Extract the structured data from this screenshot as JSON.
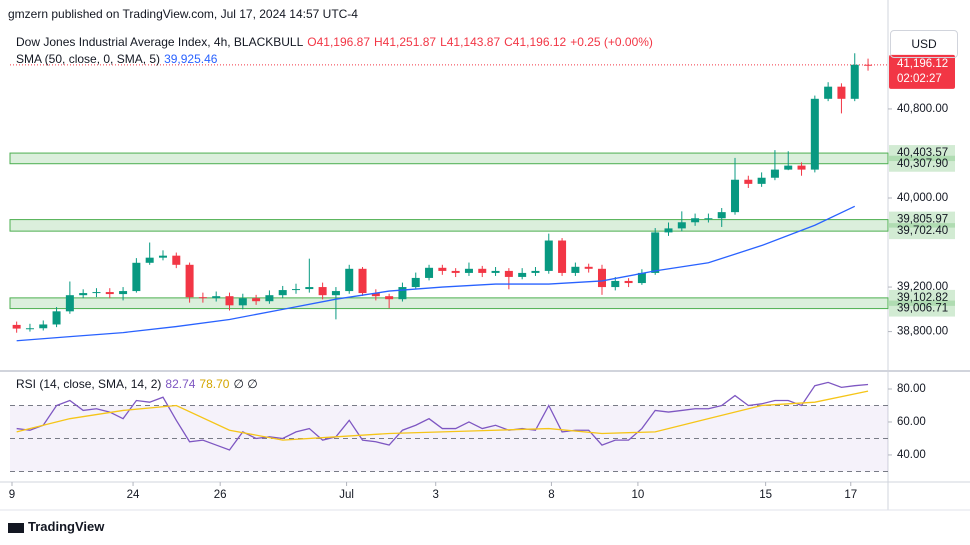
{
  "header": {
    "publisher": "gmzern published on TradingView.com, Jul 17, 2024 14:57 UTC-4",
    "symbol": "Dow Jones Industrial Average Index, 4h, BLACKBULL",
    "ohlc": [
      "O41,196.87",
      "H41,251.87",
      "L41,143.87",
      "C41,196.12",
      "+0.25 (+0.00%)"
    ],
    "currency": "USD"
  },
  "chart_data": [
    {
      "type": "candlestick",
      "up_color": "#089981",
      "down_color": "#f23645",
      "open": [
        38860,
        38827,
        38830,
        38864,
        38982,
        39127,
        39146,
        39155,
        39137,
        39164,
        39418,
        39464,
        39482,
        39400,
        39109,
        39100,
        39118,
        39036,
        39100,
        39073,
        39127,
        39173,
        39182,
        39200,
        39127,
        39164,
        39364,
        39146,
        39118,
        39091,
        39200,
        39282,
        39373,
        39345,
        39327,
        39364,
        39327,
        39345,
        39291,
        39327,
        39345,
        39618,
        39327,
        39382,
        39364,
        39200,
        39255,
        39236,
        39327,
        39691,
        39727,
        39782,
        39818,
        39818,
        39873,
        40164,
        40127,
        40182,
        40255,
        40291,
        40255,
        40891,
        41000,
        40891,
        41196.87
      ],
      "high": [
        38890,
        38870,
        38900,
        39020,
        39250,
        39180,
        39190,
        39190,
        39200,
        39460,
        39600,
        39530,
        39510,
        39420,
        39150,
        39160,
        39150,
        39140,
        39130,
        39170,
        39210,
        39230,
        39455,
        39240,
        39200,
        39400,
        39380,
        39180,
        39140,
        39240,
        39330,
        39400,
        39400,
        39370,
        39420,
        39390,
        39380,
        39370,
        39370,
        39380,
        39680,
        39640,
        39420,
        39410,
        39400,
        39290,
        39280,
        39360,
        39730,
        39780,
        39880,
        39860,
        39860,
        39910,
        40360,
        40200,
        40230,
        40430,
        40420,
        40320,
        40920,
        41040,
        41030,
        41300,
        41251.87
      ],
      "low": [
        38790,
        38800,
        38810,
        38840,
        38960,
        39100,
        39110,
        39100,
        39080,
        39150,
        39400,
        39440,
        39370,
        39060,
        39060,
        39070,
        38990,
        39000,
        39040,
        39050,
        39100,
        39140,
        39150,
        39090,
        38910,
        39140,
        39120,
        39080,
        39010,
        39070,
        39180,
        39260,
        39310,
        39290,
        39300,
        39290,
        39300,
        39180,
        39270,
        39300,
        39320,
        39300,
        39300,
        39330,
        39130,
        39170,
        39200,
        39220,
        39310,
        39660,
        39700,
        39750,
        39780,
        39740,
        39850,
        40090,
        40100,
        40160,
        40250,
        40200,
        40230,
        40870,
        40760,
        40870,
        41143.87
      ],
      "close": [
        38827,
        38830,
        38864,
        38982,
        39127,
        39146,
        39155,
        39137,
        39164,
        39418,
        39464,
        39482,
        39400,
        39109,
        39100,
        39118,
        39036,
        39100,
        39073,
        39127,
        39173,
        39182,
        39200,
        39127,
        39164,
        39364,
        39146,
        39118,
        39091,
        39200,
        39282,
        39373,
        39345,
        39327,
        39364,
        39327,
        39345,
        39291,
        39327,
        39345,
        39618,
        39327,
        39382,
        39364,
        39200,
        39255,
        39236,
        39327,
        39691,
        39727,
        39782,
        39818,
        39818,
        39873,
        40164,
        40127,
        40182,
        40255,
        40291,
        40255,
        40891,
        41000,
        40891,
        41196.87,
        41196.12
      ],
      "series": [
        {
          "name": "SMA (50, close, 0, SMA, 5)",
          "color": "#2962ff",
          "last_label": "39,925.46",
          "x": [
            0,
            4,
            8,
            12,
            16,
            20,
            24,
            28,
            32,
            36,
            40,
            44,
            48,
            52,
            56,
            60,
            63
          ],
          "values": [
            38718,
            38755,
            38791,
            38845,
            38909,
            39000,
            39091,
            39164,
            39200,
            39227,
            39227,
            39255,
            39345,
            39418,
            39573,
            39755,
            39925.46
          ]
        }
      ],
      "zones": [
        {
          "low": {
            "value": 40307.9,
            "label": "40,307.90"
          },
          "high": {
            "value": 40403.57,
            "label": "40,403.57"
          }
        },
        {
          "low": {
            "value": 39702.4,
            "label": "39,702.40"
          },
          "high": {
            "value": 39805.97,
            "label": "39,805.97"
          }
        },
        {
          "low": {
            "value": 39006.71,
            "label": "39,006.71"
          },
          "high": {
            "value": 39102.82,
            "label": "39,102.82"
          }
        }
      ],
      "zone_color": "#4caf50",
      "last_price": {
        "value": 41196.12,
        "label": "41,196.12"
      },
      "countdown": "02:02:27",
      "xlim": [
        -0.5,
        65.5
      ],
      "ylim": [
        38455,
        41527
      ],
      "yticks": [
        {
          "value": 38800,
          "label": "38,800.00"
        },
        {
          "value": 39200,
          "label": "39,200.00"
        },
        {
          "value": 40000,
          "label": "40,000.00"
        },
        {
          "value": 40800,
          "label": "40,800.00"
        }
      ]
    },
    {
      "type": "line",
      "series": [
        {
          "name": "RSI (14, close, SMA, 14, 2)",
          "color": "#7e57c2",
          "last_label": "82.74",
          "values": [
            56,
            55,
            58,
            70,
            73,
            67,
            68,
            66,
            62,
            73,
            72,
            75,
            61,
            48,
            49,
            46,
            43,
            54,
            50,
            51,
            50,
            54,
            56,
            49,
            51,
            61,
            49,
            48,
            46,
            55,
            58,
            62,
            56,
            56,
            60,
            56,
            58,
            55,
            56,
            55,
            70,
            54,
            55,
            55,
            46,
            49,
            49,
            56,
            67,
            66,
            67,
            68,
            68,
            70,
            76,
            70,
            71,
            73,
            73,
            70,
            82,
            84,
            81,
            82,
            82.74
          ]
        },
        {
          "name": "RSI SMA",
          "color": "#f5c518",
          "last_label": "78.70",
          "x": [
            0,
            4,
            8,
            12,
            16,
            20,
            24,
            28,
            32,
            36,
            40,
            44,
            48,
            52,
            56,
            60,
            64
          ],
          "values": [
            54,
            62,
            67,
            70,
            55,
            49,
            51,
            53,
            54,
            55,
            56,
            53,
            54,
            62,
            70,
            72,
            78.7
          ]
        }
      ],
      "extra_label": "∅ ∅",
      "levels": [
        70,
        50,
        30
      ],
      "xlim": [
        -0.5,
        65.5
      ],
      "ylim": [
        23.6,
        90.3
      ],
      "yticks": [
        {
          "value": 80,
          "label": "80.00"
        },
        {
          "value": 60,
          "label": "60.00"
        },
        {
          "value": 40,
          "label": "40.00"
        }
      ],
      "xticks": [
        {
          "value": -0.35,
          "label": "9"
        },
        {
          "value": 8.75,
          "label": "24"
        },
        {
          "value": 15.3,
          "label": "26"
        },
        {
          "value": 24.8,
          "label": "Jul"
        },
        {
          "value": 31.5,
          "label": "3"
        },
        {
          "value": 40.2,
          "label": "8"
        },
        {
          "value": 46.7,
          "label": "10"
        },
        {
          "value": 56.3,
          "label": "15"
        },
        {
          "value": 62.7,
          "label": "17"
        }
      ]
    }
  ],
  "footer": "TradingView"
}
